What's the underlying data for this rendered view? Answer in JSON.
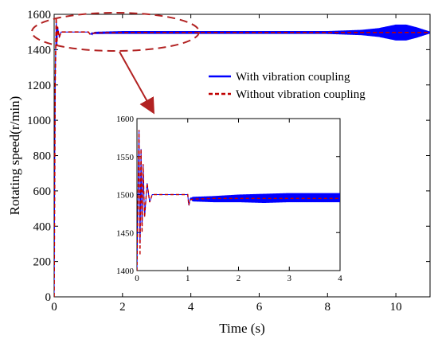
{
  "chart_data": [
    {
      "type": "line",
      "role": "main",
      "title": "",
      "xlabel": "Time (s)",
      "ylabel": "Rotating speed(r/min)",
      "xlim": [
        0,
        11
      ],
      "ylim": [
        0,
        1600
      ],
      "xticks": [
        0,
        2,
        4,
        6,
        8,
        10
      ],
      "yticks": [
        0,
        200,
        400,
        600,
        800,
        1000,
        1200,
        1400,
        1600
      ],
      "grid": false,
      "legend_position": "top-right",
      "series": [
        {
          "name": "With vibration coupling",
          "color": "#0000ff",
          "style": "solid",
          "x": [
            0,
            0.03,
            0.06,
            0.08,
            0.1,
            0.15,
            0.2,
            0.5,
            1.0,
            1.05,
            1.2,
            2,
            4,
            6,
            8,
            9,
            9.5,
            10,
            10.3,
            10.6,
            11
          ],
          "y": [
            0,
            1200,
            1580,
            1420,
            1530,
            1470,
            1500,
            1500,
            1500,
            1488,
            1495,
            1497,
            1497,
            1497,
            1497,
            1497,
            1497,
            1497,
            1497,
            1497,
            1497
          ],
          "oscillation_amplitude": [
            0,
            0,
            0,
            0,
            0,
            0,
            0,
            0,
            0,
            0,
            6,
            8,
            8,
            8,
            8,
            15,
            25,
            45,
            45,
            30,
            5
          ]
        },
        {
          "name": "Without vibration coupling",
          "color": "#c00000",
          "style": "dashed",
          "x": [
            0,
            0.03,
            0.06,
            0.08,
            0.1,
            0.15,
            0.2,
            0.5,
            1.0,
            1.05,
            1.2,
            2,
            4,
            6,
            8,
            10,
            11
          ],
          "y": [
            0,
            1200,
            1580,
            1420,
            1530,
            1470,
            1500,
            1500,
            1500,
            1488,
            1495,
            1497,
            1497,
            1497,
            1497,
            1497,
            1497
          ]
        }
      ],
      "annotation": "dashed ellipse around the peak region near 1500 r/min with arrow pointing to the inset"
    },
    {
      "type": "line",
      "role": "inset",
      "title": "",
      "xlabel": "",
      "ylabel": "",
      "xlim": [
        0,
        4
      ],
      "ylim": [
        1400,
        1600
      ],
      "xticks": [
        0,
        1,
        2,
        3,
        4
      ],
      "yticks": [
        1400,
        1450,
        1500,
        1550,
        1600
      ],
      "grid": false,
      "series": [
        {
          "name": "With vibration coupling",
          "color": "#0000ff",
          "style": "solid",
          "x": [
            0,
            0.04,
            0.06,
            0.08,
            0.1,
            0.12,
            0.15,
            0.2,
            0.25,
            0.3,
            0.5,
            1.0,
            1.02,
            1.05,
            1.1,
            1.5,
            2,
            2.5,
            3,
            3.5,
            4
          ],
          "y": [
            1400,
            1585,
            1420,
            1560,
            1450,
            1540,
            1470,
            1515,
            1490,
            1500,
            1500,
            1500,
            1486,
            1495,
            1494,
            1494,
            1495,
            1495,
            1496,
            1496,
            1496
          ],
          "oscillation_amplitude": [
            0,
            0,
            0,
            0,
            0,
            0,
            0,
            0,
            0,
            0,
            0,
            0,
            0,
            0,
            3,
            4,
            5,
            6,
            6,
            6,
            6
          ]
        },
        {
          "name": "Without vibration coupling",
          "color": "#c00000",
          "style": "dashed",
          "x": [
            0,
            0.04,
            0.06,
            0.08,
            0.1,
            0.12,
            0.15,
            0.2,
            0.25,
            0.3,
            0.5,
            1.0,
            1.02,
            1.05,
            1.1,
            1.5,
            2,
            3,
            4
          ],
          "y": [
            1400,
            1585,
            1420,
            1560,
            1450,
            1540,
            1470,
            1515,
            1490,
            1500,
            1500,
            1500,
            1486,
            1493,
            1494,
            1495,
            1495,
            1495,
            1495
          ]
        }
      ]
    }
  ]
}
